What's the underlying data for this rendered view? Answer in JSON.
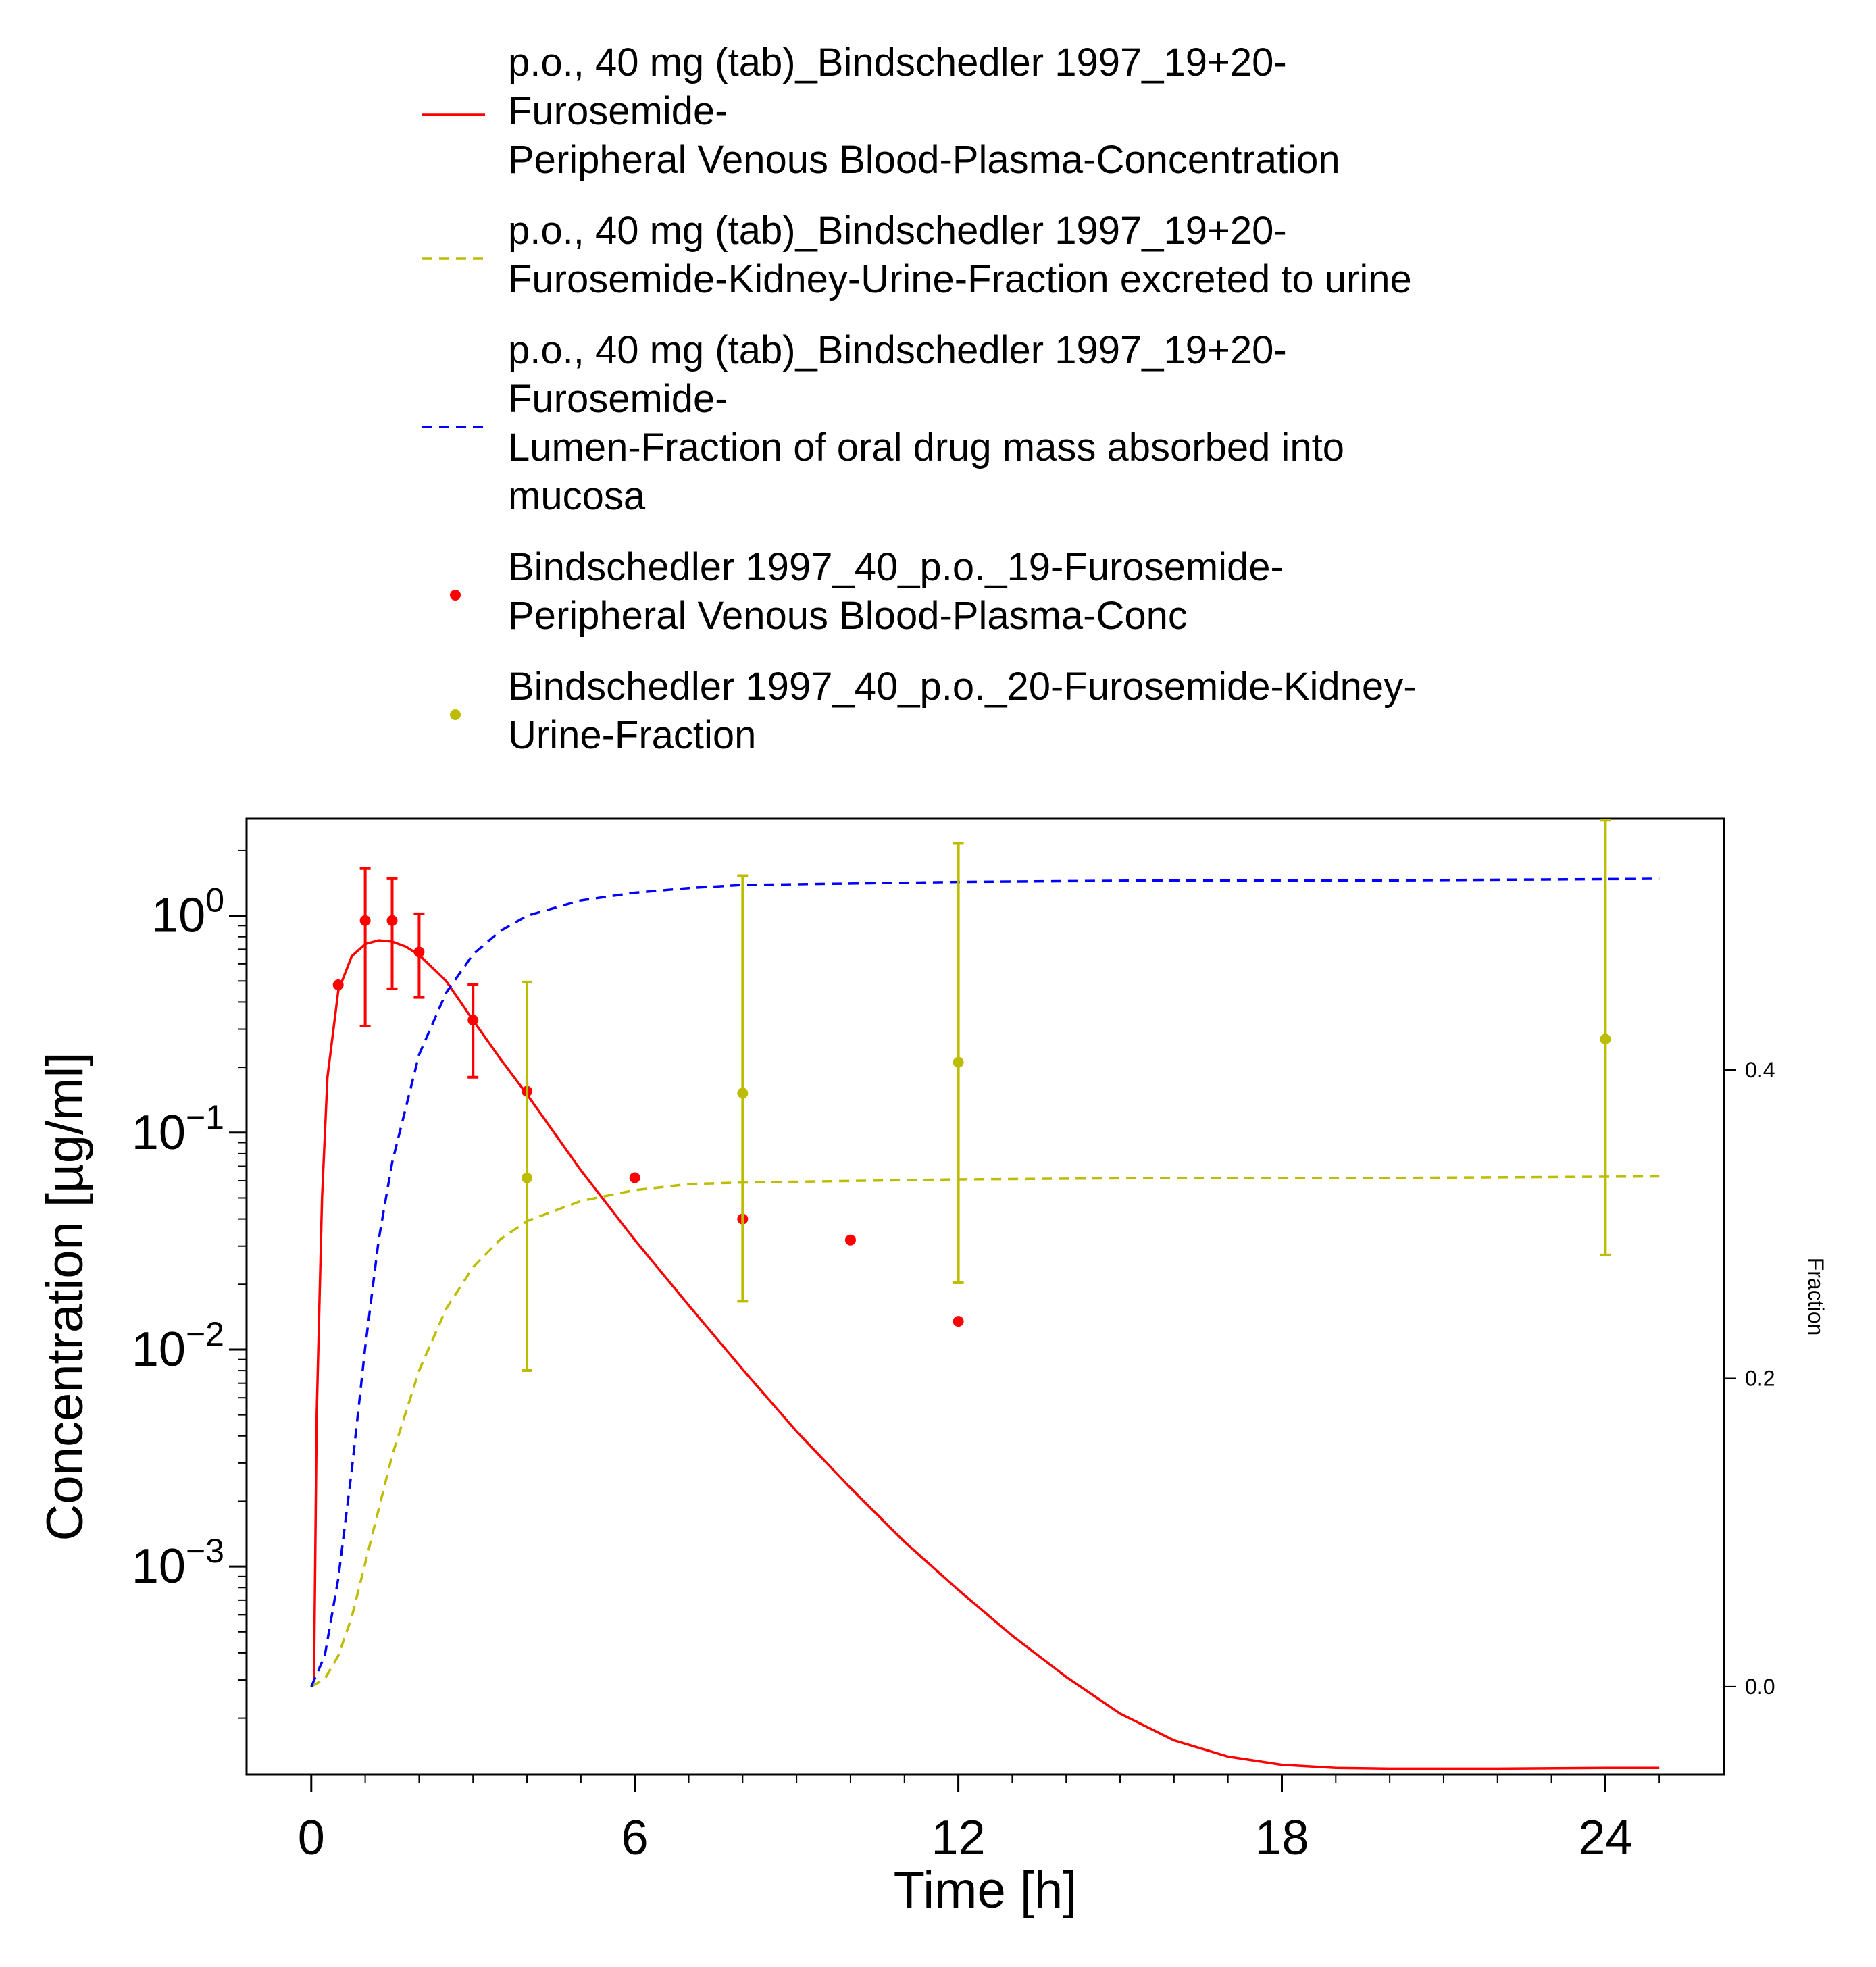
{
  "chart_data": {
    "type": "line",
    "xlabel": "Time [h]",
    "ylabel": "Concentration [µg/ml]",
    "y2label": "Fraction",
    "xlim": [
      -1.2,
      26.2
    ],
    "ylim_log": [
      0.00011,
      2.8
    ],
    "y_scale": "log",
    "y2lim": [
      -0.057,
      0.563
    ],
    "x_ticks": [
      0,
      6,
      12,
      18,
      24
    ],
    "x_tick_labels": [
      "0",
      "6",
      "12",
      "18",
      "24"
    ],
    "y_ticks": [
      {
        "value": 1,
        "base": "10",
        "exp": "0"
      },
      {
        "value": 0.1,
        "base": "10",
        "exp": "−1"
      },
      {
        "value": 0.01,
        "base": "10",
        "exp": "−2"
      },
      {
        "value": 0.001,
        "base": "10",
        "exp": "−3"
      }
    ],
    "y2_ticks": [
      0.0,
      0.2,
      0.4
    ],
    "y2_tick_labels": [
      "0.0",
      "0.2",
      "0.4"
    ],
    "legend_placement": "top",
    "legend": [
      {
        "lines": [
          "p.o., 40 mg (tab)_Bindschedler 1997_19+20-",
          "Furosemide-",
          "Peripheral Venous Blood-Plasma-Concentration"
        ],
        "style": "solid",
        "color": "#ff0000"
      },
      {
        "lines": [
          "p.o., 40 mg (tab)_Bindschedler 1997_19+20-",
          "Furosemide-Kidney-Urine-Fraction excreted to urine"
        ],
        "style": "dashed",
        "color": "#bcbc00"
      },
      {
        "lines": [
          "p.o., 40 mg (tab)_Bindschedler 1997_19+20-",
          "Furosemide-",
          "Lumen-Fraction of oral drug mass absorbed into",
          "mucosa"
        ],
        "style": "dashed",
        "color": "#0000ff"
      },
      {
        "lines": [
          "Bindschedler 1997_40_p.o._19-Furosemide-",
          "Peripheral Venous Blood-Plasma-Conc"
        ],
        "style": "marker",
        "color": "#ff0000"
      },
      {
        "lines": [
          "Bindschedler 1997_40_p.o._20-Furosemide-Kidney-",
          "Urine-Fraction"
        ],
        "style": "marker",
        "color": "#bcbc00"
      }
    ],
    "series": [
      {
        "name": "p.o., 40 mg (tab)_Bindschedler 1997_19+20-Furosemide-Peripheral Venous Blood-Plasma-Concentration",
        "kind": "line",
        "style": "solid",
        "axis": "left",
        "color": "#ff0000",
        "x": [
          0.05,
          0.1,
          0.2,
          0.3,
          0.5,
          0.75,
          1.0,
          1.25,
          1.5,
          1.75,
          2.0,
          2.5,
          3.0,
          3.5,
          4.0,
          5.0,
          6.0,
          7.0,
          8.0,
          9.0,
          10.0,
          11.0,
          12.0,
          13.0,
          14.0,
          15.0,
          16.0,
          17.0,
          18.0,
          19.0,
          20.0,
          22.0,
          24.0,
          25.0
        ],
        "y": [
          0.0003,
          0.005,
          0.05,
          0.18,
          0.45,
          0.65,
          0.74,
          0.77,
          0.76,
          0.72,
          0.66,
          0.5,
          0.33,
          0.22,
          0.15,
          0.067,
          0.032,
          0.016,
          0.0081,
          0.0042,
          0.0023,
          0.0013,
          0.00078,
          0.00048,
          0.00031,
          0.00021,
          0.000158,
          0.000133,
          0.000122,
          0.000118,
          0.000117,
          0.000117,
          0.000118,
          0.000118
        ]
      },
      {
        "name": "p.o., 40 mg (tab)_Bindschedler 1997_19+20-Furosemide-Kidney-Urine-Fraction excreted to urine",
        "kind": "line",
        "style": "dashed",
        "axis": "right",
        "color": "#bcbc00",
        "x": [
          0.0,
          0.25,
          0.5,
          0.75,
          1.0,
          1.5,
          2.0,
          2.5,
          3.0,
          3.5,
          4.0,
          5.0,
          6.0,
          7.0,
          8.0,
          10.0,
          12.0,
          16.0,
          20.0,
          25.0
        ],
        "y": [
          0.0,
          0.005,
          0.02,
          0.045,
          0.08,
          0.15,
          0.205,
          0.245,
          0.272,
          0.29,
          0.302,
          0.315,
          0.322,
          0.326,
          0.327,
          0.328,
          0.329,
          0.33,
          0.33,
          0.331
        ]
      },
      {
        "name": "p.o., 40 mg (tab)_Bindschedler 1997_19+20-Furosemide-Lumen-Fraction of oral drug mass absorbed into mucosa",
        "kind": "line",
        "style": "dashed",
        "axis": "right",
        "color": "#0000ff",
        "x": [
          0.0,
          0.25,
          0.5,
          0.75,
          1.0,
          1.25,
          1.5,
          2.0,
          2.5,
          3.0,
          3.5,
          4.0,
          5.0,
          6.0,
          7.0,
          8.0,
          10.0,
          12.0,
          16.0,
          20.0,
          25.0
        ],
        "y": [
          0.0,
          0.02,
          0.07,
          0.14,
          0.22,
          0.29,
          0.34,
          0.41,
          0.45,
          0.475,
          0.49,
          0.5,
          0.51,
          0.515,
          0.518,
          0.52,
          0.521,
          0.522,
          0.523,
          0.523,
          0.524
        ]
      },
      {
        "name": "Bindschedler 1997_40_p.o._19-Furosemide-Peripheral Venous Blood-Plasma-Conc",
        "kind": "scatter",
        "axis": "left",
        "color": "#ff0000",
        "x": [
          0.5,
          1.0,
          1.5,
          2.0,
          3.0,
          4.0,
          6.0,
          8.0,
          10.0,
          12.0
        ],
        "y": [
          0.48,
          0.95,
          0.95,
          0.68,
          0.33,
          0.155,
          0.062,
          0.04,
          0.032,
          0.0135
        ],
        "err_low": [
          null,
          0.31,
          0.46,
          0.42,
          0.18,
          null,
          null,
          null,
          null,
          null
        ],
        "err_high": [
          null,
          1.65,
          1.48,
          1.02,
          0.48,
          null,
          null,
          null,
          null,
          null
        ]
      },
      {
        "name": "Bindschedler 1997_40_p.o._20-Furosemide-Kidney-Urine-Fraction",
        "kind": "scatter",
        "axis": "right",
        "color": "#bcbc00",
        "x": [
          4.0,
          8.0,
          12.0,
          24.0
        ],
        "y": [
          0.33,
          0.385,
          0.405,
          0.42
        ],
        "err_low": [
          0.205,
          0.25,
          0.262,
          0.28
        ],
        "err_high": [
          0.457,
          0.526,
          0.547,
          0.562
        ]
      }
    ]
  }
}
